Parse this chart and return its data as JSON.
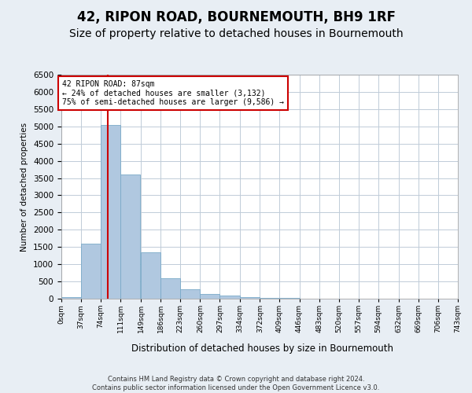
{
  "title": "42, RIPON ROAD, BOURNEMOUTH, BH9 1RF",
  "subtitle": "Size of property relative to detached houses in Bournemouth",
  "xlabel": "Distribution of detached houses by size in Bournemouth",
  "ylabel": "Number of detached properties",
  "footer_line1": "Contains HM Land Registry data © Crown copyright and database right 2024.",
  "footer_line2": "Contains public sector information licensed under the Open Government Licence v3.0.",
  "bin_labels": [
    "0sqm",
    "37sqm",
    "74sqm",
    "111sqm",
    "149sqm",
    "186sqm",
    "223sqm",
    "260sqm",
    "297sqm",
    "334sqm",
    "372sqm",
    "409sqm",
    "446sqm",
    "483sqm",
    "520sqm",
    "557sqm",
    "594sqm",
    "632sqm",
    "669sqm",
    "706sqm",
    "743sqm"
  ],
  "bin_edges": [
    0,
    37,
    74,
    111,
    149,
    186,
    223,
    260,
    297,
    334,
    372,
    409,
    446,
    483,
    520,
    557,
    594,
    632,
    669,
    706,
    743
  ],
  "bar_values": [
    50,
    1600,
    5050,
    3600,
    1350,
    600,
    280,
    130,
    80,
    50,
    30,
    15,
    10,
    5,
    3,
    2,
    1,
    1,
    0,
    0
  ],
  "bar_color": "#b0c8e0",
  "bar_edge_color": "#7aaac8",
  "property_value": 87,
  "vline_color": "#cc0000",
  "annotation_line1": "42 RIPON ROAD: 87sqm",
  "annotation_line2": "← 24% of detached houses are smaller (3,132)",
  "annotation_line3": "75% of semi-detached houses are larger (9,586) →",
  "annotation_box_edgecolor": "#cc0000",
  "annotation_box_facecolor": "#ffffff",
  "ylim_max": 6500,
  "ytick_step": 500,
  "bg_color": "#e8eef4",
  "plot_bg_color": "#ffffff",
  "grid_color": "#c0ccd8",
  "title_fontsize": 12,
  "subtitle_fontsize": 10
}
